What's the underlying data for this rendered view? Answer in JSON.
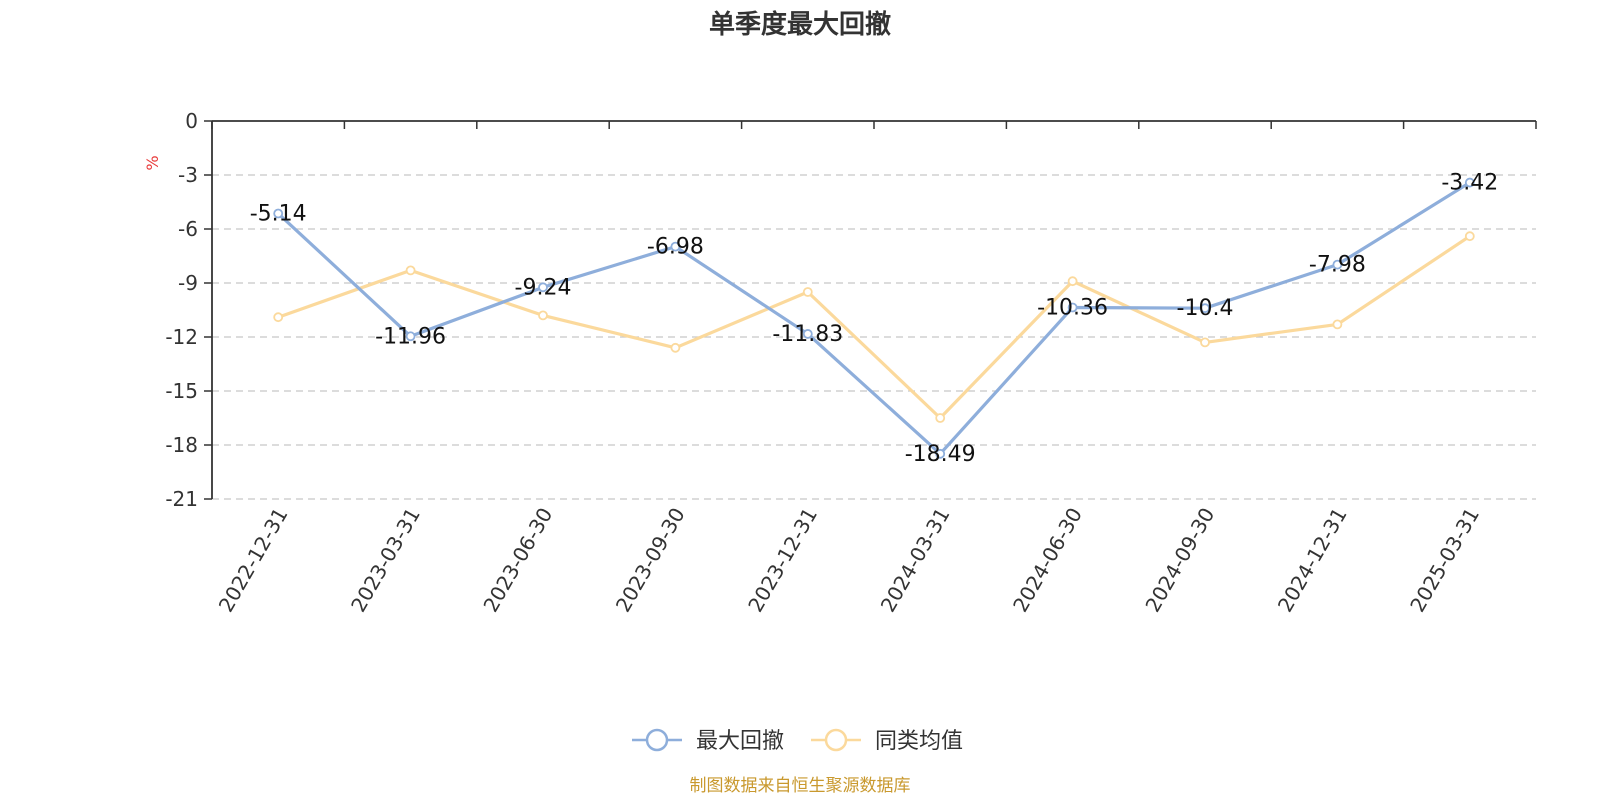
{
  "chart_data": {
    "type": "line",
    "title": "单季度最大回撤",
    "ylabel": "%",
    "categories": [
      "2022-12-31",
      "2023-03-31",
      "2023-06-30",
      "2023-09-30",
      "2023-12-31",
      "2024-03-31",
      "2024-06-30",
      "2024-09-30",
      "2024-12-31",
      "2025-03-31"
    ],
    "ylim": [
      -21,
      0
    ],
    "yticks": [
      "0",
      "-3",
      "-6",
      "-9",
      "-12",
      "-15",
      "-18",
      "-21"
    ],
    "grid": true,
    "legend_position": "bottom",
    "series": [
      {
        "name": "最大回撤",
        "color": "#8eaedb",
        "values": [
          -5.14,
          -11.96,
          -9.24,
          -6.98,
          -11.83,
          -18.49,
          -10.36,
          -10.4,
          -7.98,
          -3.42
        ],
        "labels": [
          "-5.14",
          "-11.96",
          "-9.24",
          "-6.98",
          "-11.83",
          "-18.49",
          "-10.36",
          "-10.4",
          "-7.98",
          "-3.42"
        ]
      },
      {
        "name": "同类均值",
        "color": "#fbd99c",
        "values": [
          -10.9,
          -8.3,
          -10.8,
          -12.6,
          -9.5,
          -16.5,
          -8.9,
          -12.3,
          -11.3,
          -6.4
        ]
      }
    ]
  },
  "unit_color": "#e83a3a",
  "source": {
    "text": "制图数据来自恒生聚源数据库",
    "color": "#c9992e"
  }
}
